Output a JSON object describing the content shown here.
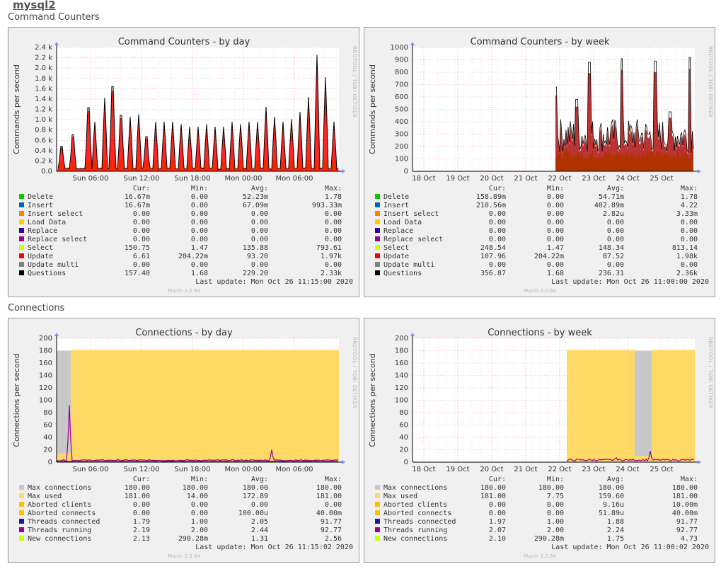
{
  "host": "mysql2",
  "sections": [
    {
      "title": "Command Counters"
    },
    {
      "title": "Connections"
    }
  ],
  "columns": {
    "cur": "Cur:",
    "min": "Min:",
    "avg": "Avg:",
    "max": "Max:"
  },
  "vertical_label": "RRDTOOL / TOBI OETIKER",
  "footer": "Munin 2.0.64",
  "colors": {
    "delete": "#00cc00",
    "insert": "#0066b3",
    "insert_select": "#ff8000",
    "load_data": "#ffcc00",
    "replace": "#330099",
    "replace_select": "#990099",
    "select": "#ccff00",
    "update": "#ff0000",
    "update_multi": "#808080",
    "questions": "#000000",
    "max_conn": "#c8c8c8",
    "max_used": "#ffd966",
    "aborted": "#ffbf00",
    "threads_conn": "#1a1aa0",
    "threads_run": "#990099",
    "new_conn": "#ccff00"
  },
  "graphs": [
    {
      "title": "Command Counters - by day",
      "ylabel": "Commands per second",
      "y_ticks": [
        "0.0",
        "0.2 k",
        "0.4 k",
        "0.6 k",
        "0.8 k",
        "1.0 k",
        "1.2 k",
        "1.4 k",
        "1.6 k",
        "1.8 k",
        "2.0 k",
        "2.2 k",
        "2.4 k"
      ],
      "x_ticks": [
        "Sun 06:00",
        "Sun 12:00",
        "Sun 18:00",
        "Mon 00:00",
        "Mon 06:00"
      ],
      "last_update": "Last update: Mon Oct 26 11:15:00 2020",
      "legend": [
        {
          "label": "Delete",
          "color": "delete",
          "cur": "16.67m",
          "min": "0.00",
          "avg": "52.23m",
          "max": "1.78"
        },
        {
          "label": "Insert",
          "color": "insert",
          "cur": "16.67m",
          "min": "0.00",
          "avg": "67.09m",
          "max": "993.33m"
        },
        {
          "label": "Insert select",
          "color": "insert_select",
          "cur": "0.00",
          "min": "0.00",
          "avg": "0.00",
          "max": "0.00"
        },
        {
          "label": "Load Data",
          "color": "load_data",
          "cur": "0.00",
          "min": "0.00",
          "avg": "0.00",
          "max": "0.00"
        },
        {
          "label": "Replace",
          "color": "replace",
          "cur": "0.00",
          "min": "0.00",
          "avg": "0.00",
          "max": "0.00"
        },
        {
          "label": "Replace select",
          "color": "replace_select",
          "cur": "0.00",
          "min": "0.00",
          "avg": "0.00",
          "max": "0.00"
        },
        {
          "label": "Select",
          "color": "select",
          "cur": "150.75",
          "min": "1.47",
          "avg": "135.88",
          "max": "793.61"
        },
        {
          "label": "Update",
          "color": "update",
          "cur": "6.61",
          "min": "204.22m",
          "avg": "93.20",
          "max": "1.97k"
        },
        {
          "label": "Update multi",
          "color": "update_multi",
          "cur": "0.00",
          "min": "0.00",
          "avg": "0.00",
          "max": "0.00"
        },
        {
          "label": "Questions",
          "color": "questions",
          "cur": "157.40",
          "min": "1.68",
          "avg": "229.20",
          "max": "2.33k"
        }
      ]
    },
    {
      "title": "Command Counters - by week",
      "ylabel": "Commands per second",
      "y_ticks": [
        "0",
        "100",
        "200",
        "300",
        "400",
        "500",
        "600",
        "700",
        "800",
        "900",
        "1000"
      ],
      "x_ticks": [
        "18 Oct",
        "19 Oct",
        "20 Oct",
        "21 Oct",
        "22 Oct",
        "23 Oct",
        "24 Oct",
        "25 Oct"
      ],
      "last_update": "Last update: Mon Oct 26 11:00:00 2020",
      "legend": [
        {
          "label": "Delete",
          "color": "delete",
          "cur": "158.89m",
          "min": "0.00",
          "avg": "54.71m",
          "max": "1.78"
        },
        {
          "label": "Insert",
          "color": "insert",
          "cur": "210.56m",
          "min": "0.00",
          "avg": "402.89m",
          "max": "4.22"
        },
        {
          "label": "Insert select",
          "color": "insert_select",
          "cur": "0.00",
          "min": "0.00",
          "avg": "2.82u",
          "max": "3.33m"
        },
        {
          "label": "Load Data",
          "color": "load_data",
          "cur": "0.00",
          "min": "0.00",
          "avg": "0.00",
          "max": "0.00"
        },
        {
          "label": "Replace",
          "color": "replace",
          "cur": "0.00",
          "min": "0.00",
          "avg": "0.00",
          "max": "0.00"
        },
        {
          "label": "Replace select",
          "color": "replace_select",
          "cur": "0.00",
          "min": "0.00",
          "avg": "0.00",
          "max": "0.00"
        },
        {
          "label": "Select",
          "color": "select",
          "cur": "248.54",
          "min": "1.47",
          "avg": "148.34",
          "max": "813.14"
        },
        {
          "label": "Update",
          "color": "update",
          "cur": "107.96",
          "min": "204.22m",
          "avg": "87.52",
          "max": "1.98k"
        },
        {
          "label": "Update multi",
          "color": "update_multi",
          "cur": "0.00",
          "min": "0.00",
          "avg": "0.00",
          "max": "0.00"
        },
        {
          "label": "Questions",
          "color": "questions",
          "cur": "356.87",
          "min": "1.68",
          "avg": "236.31",
          "max": "2.36k"
        }
      ]
    },
    {
      "title": "Connections - by day",
      "ylabel": "Connections per second",
      "y_ticks": [
        "0",
        "20",
        "40",
        "60",
        "80",
        "100",
        "120",
        "140",
        "160",
        "180",
        "200"
      ],
      "x_ticks": [
        "Sun 06:00",
        "Sun 12:00",
        "Sun 18:00",
        "Mon 00:00",
        "Mon 06:00"
      ],
      "last_update": "Last update: Mon Oct 26 11:15:02 2020",
      "legend": [
        {
          "label": "Max connections",
          "color": "max_conn",
          "cur": "180.00",
          "min": "180.00",
          "avg": "180.00",
          "max": "180.00"
        },
        {
          "label": "Max used",
          "color": "max_used",
          "cur": "181.00",
          "min": "14.00",
          "avg": "172.89",
          "max": "181.00"
        },
        {
          "label": "Aborted clients",
          "color": "aborted",
          "cur": "0.00",
          "min": "0.00",
          "avg": "0.00",
          "max": "0.00"
        },
        {
          "label": "Aborted connects",
          "color": "aborted",
          "cur": "0.00",
          "min": "0.00",
          "avg": "100.00u",
          "max": "40.00m"
        },
        {
          "label": "Threads connected",
          "color": "threads_conn",
          "cur": "1.79",
          "min": "1.00",
          "avg": "2.05",
          "max": "91.77"
        },
        {
          "label": "Threads running",
          "color": "threads_run",
          "cur": "2.19",
          "min": "2.00",
          "avg": "2.44",
          "max": "92.77"
        },
        {
          "label": "New connections",
          "color": "new_conn",
          "cur": "2.13",
          "min": "290.28m",
          "avg": "1.31",
          "max": "2.56"
        }
      ]
    },
    {
      "title": "Connections - by week",
      "ylabel": "Connections per second",
      "y_ticks": [
        "0",
        "20",
        "40",
        "60",
        "80",
        "100",
        "120",
        "140",
        "160",
        "180",
        "200"
      ],
      "x_ticks": [
        "18 Oct",
        "19 Oct",
        "20 Oct",
        "21 Oct",
        "22 Oct",
        "23 Oct",
        "24 Oct",
        "25 Oct"
      ],
      "last_update": "Last update: Mon Oct 26 11:00:02 2020",
      "legend": [
        {
          "label": "Max connections",
          "color": "max_conn",
          "cur": "180.00",
          "min": "180.00",
          "avg": "180.00",
          "max": "180.00"
        },
        {
          "label": "Max used",
          "color": "max_used",
          "cur": "181.00",
          "min": "7.75",
          "avg": "159.60",
          "max": "181.00"
        },
        {
          "label": "Aborted clients",
          "color": "aborted",
          "cur": "0.00",
          "min": "0.00",
          "avg": "9.16u",
          "max": "10.00m"
        },
        {
          "label": "Aborted connects",
          "color": "aborted",
          "cur": "0.00",
          "min": "0.00",
          "avg": "51.89u",
          "max": "40.00m"
        },
        {
          "label": "Threads connected",
          "color": "threads_conn",
          "cur": "1.97",
          "min": "1.00",
          "avg": "1.88",
          "max": "91.77"
        },
        {
          "label": "Threads running",
          "color": "threads_run",
          "cur": "2.07",
          "min": "2.00",
          "avg": "2.24",
          "max": "92.77"
        },
        {
          "label": "New connections",
          "color": "new_conn",
          "cur": "2.10",
          "min": "290.28m",
          "avg": "1.75",
          "max": "4.73"
        }
      ]
    }
  ]
}
